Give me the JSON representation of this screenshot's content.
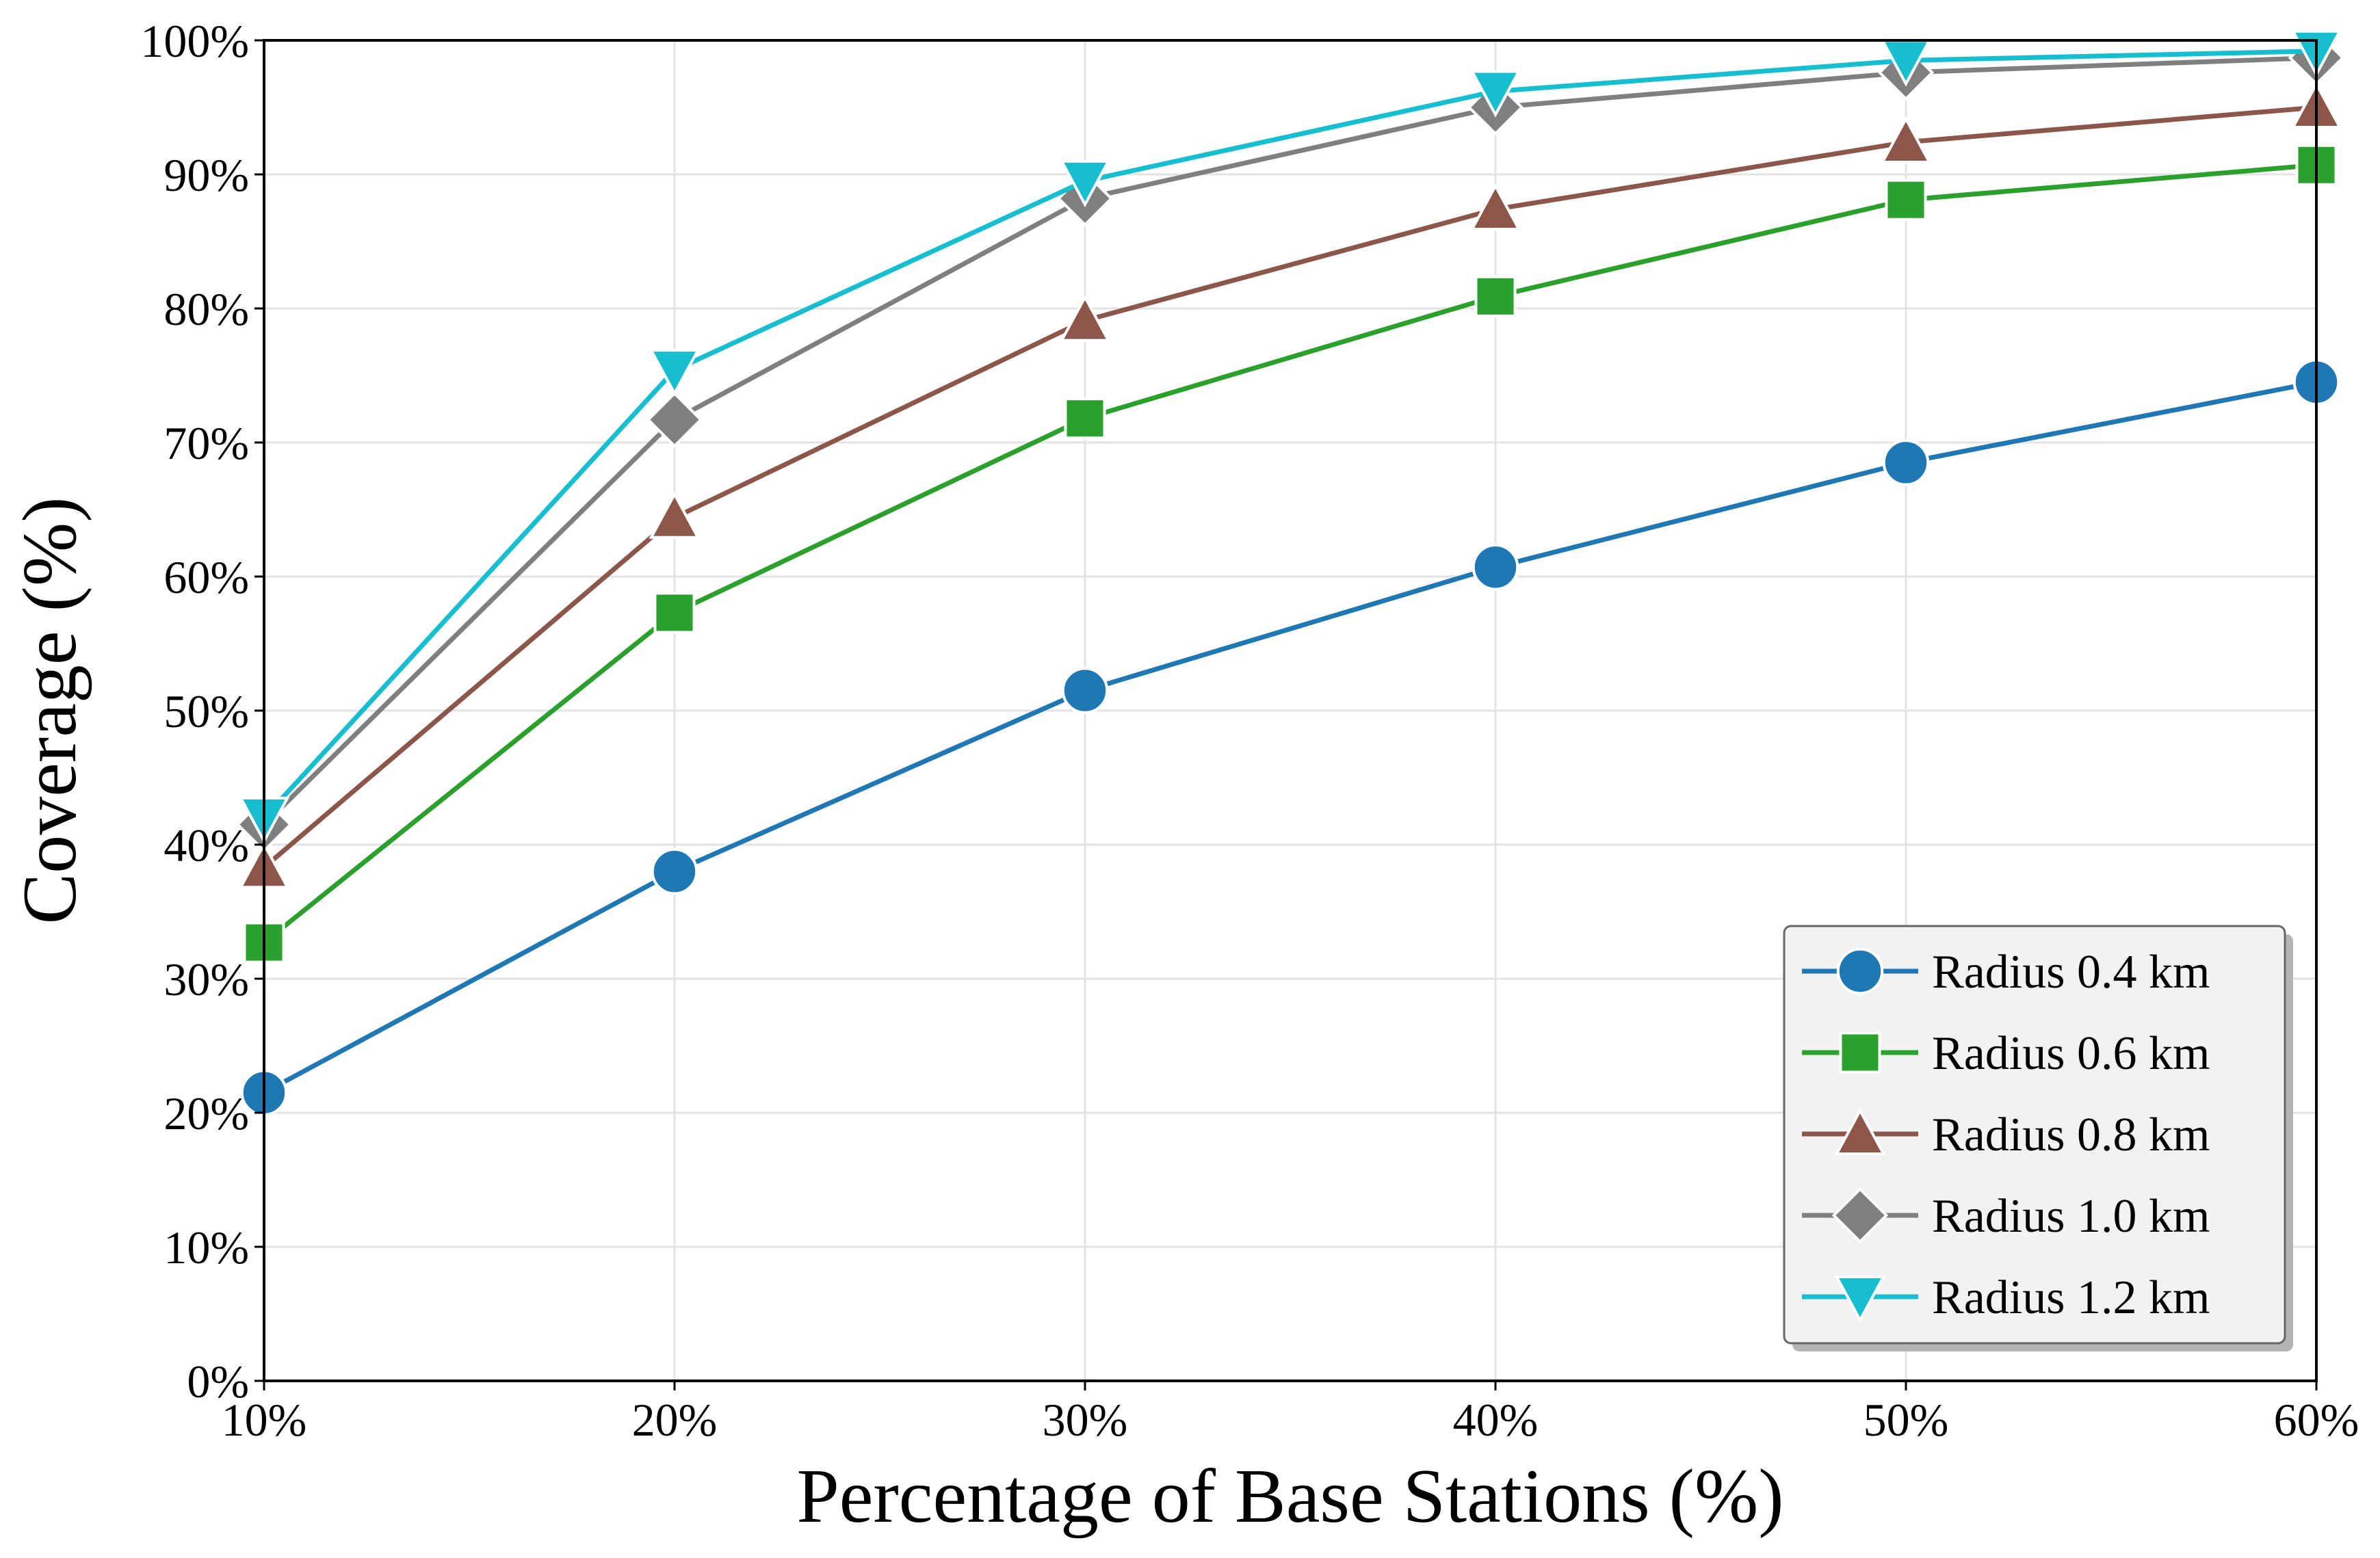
{
  "chart_data": {
    "type": "line",
    "title": "",
    "xlabel": "Percentage of Base Stations (%)",
    "ylabel": "Coverage (%)",
    "x": [
      10,
      20,
      30,
      40,
      50,
      60
    ],
    "x_tick_labels": [
      "10%",
      "20%",
      "30%",
      "40%",
      "50%",
      "60%"
    ],
    "y_ticks": [
      0,
      10,
      20,
      30,
      40,
      50,
      60,
      70,
      80,
      90,
      100
    ],
    "y_tick_labels": [
      "0%",
      "10%",
      "20%",
      "30%",
      "40%",
      "50%",
      "60%",
      "70%",
      "80%",
      "90%",
      "100%"
    ],
    "xlim": [
      10,
      60
    ],
    "ylim": [
      0,
      100
    ],
    "grid": true,
    "legend_position": "bottom-right",
    "series": [
      {
        "name": "Radius 0.4 km",
        "color": "#1f77b4",
        "marker": "circle",
        "values": [
          21.5,
          38.0,
          51.5,
          60.7,
          68.5,
          74.5
        ]
      },
      {
        "name": "Radius 0.6 km",
        "color": "#2ca02c",
        "marker": "square",
        "values": [
          32.7,
          57.3,
          71.8,
          80.9,
          88.1,
          90.7
        ]
      },
      {
        "name": "Radius 0.8 km",
        "color": "#8c564b",
        "marker": "triangle-up",
        "values": [
          38.3,
          64.4,
          79.1,
          87.4,
          92.4,
          95.0
        ]
      },
      {
        "name": "Radius 1.0 km",
        "color": "#7f7f7f",
        "marker": "diamond",
        "values": [
          41.5,
          71.7,
          88.2,
          95.0,
          97.6,
          98.7
        ]
      },
      {
        "name": "Radius 1.2 km",
        "color": "#17becf",
        "marker": "triangle-down",
        "values": [
          42.0,
          75.4,
          89.5,
          96.2,
          98.5,
          99.2
        ]
      }
    ]
  }
}
